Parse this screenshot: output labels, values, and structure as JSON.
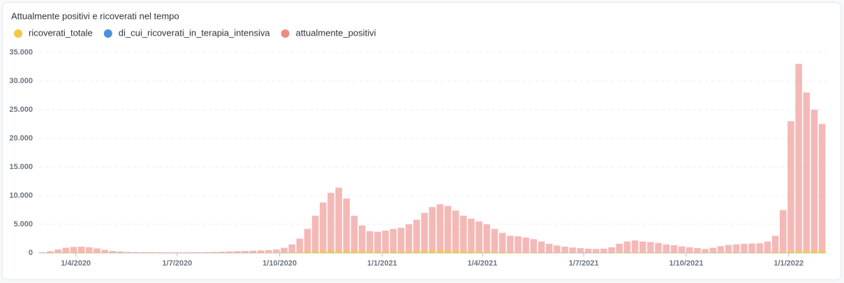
{
  "chart_data": {
    "type": "bar",
    "title": "Attualmente positivi e ricoverati nel tempo",
    "x_start": "2020-03-02",
    "x_step_days": 7,
    "xlim": [
      "2020-02-28",
      "2022-02-04"
    ],
    "xticks": [
      {
        "value": "2020-04-01",
        "label": "1/4/2020"
      },
      {
        "value": "2020-07-01",
        "label": "1/7/2020"
      },
      {
        "value": "2020-10-01",
        "label": "1/10/2020"
      },
      {
        "value": "2021-01-01",
        "label": "1/1/2021"
      },
      {
        "value": "2021-04-01",
        "label": "1/4/2021"
      },
      {
        "value": "2021-07-01",
        "label": "1/7/2021"
      },
      {
        "value": "2021-10-01",
        "label": "1/10/2021"
      },
      {
        "value": "2022-01-01",
        "label": "1/1/2022"
      }
    ],
    "ylim": [
      0,
      35000
    ],
    "yticks": [
      0,
      {
        "value": 5000,
        "label": "5.000"
      },
      {
        "value": 10000,
        "label": "10.000"
      },
      {
        "value": 15000,
        "label": "15.000"
      },
      {
        "value": 20000,
        "label": "20.000"
      },
      {
        "value": 25000,
        "label": "25.000"
      },
      {
        "value": 30000,
        "label": "30.000"
      },
      {
        "value": 35000,
        "label": "35.000"
      }
    ],
    "grid": true,
    "series": [
      {
        "name": "ricoverati_totale",
        "color": "#f5c842",
        "values": [
          10,
          30,
          60,
          90,
          100,
          100,
          90,
          70,
          50,
          35,
          25,
          20,
          15,
          12,
          10,
          10,
          8,
          8,
          8,
          8,
          10,
          12,
          15,
          18,
          20,
          25,
          30,
          35,
          40,
          50,
          60,
          80,
          120,
          180,
          260,
          350,
          400,
          430,
          440,
          420,
          380,
          330,
          300,
          280,
          280,
          290,
          300,
          330,
          370,
          420,
          450,
          460,
          440,
          400,
          350,
          300,
          260,
          220,
          180,
          150,
          120,
          100,
          90,
          80,
          70,
          55,
          45,
          40,
          35,
          30,
          30,
          30,
          35,
          45,
          60,
          75,
          80,
          80,
          75,
          70,
          65,
          55,
          50,
          45,
          40,
          40,
          45,
          50,
          55,
          60,
          65,
          70,
          75,
          90,
          120,
          200,
          300,
          400,
          430,
          420,
          400
        ]
      },
      {
        "name": "di_cui_ricoverati_in_terapia_intensiva",
        "color": "#4a90e2",
        "values": [
          2,
          5,
          10,
          15,
          15,
          14,
          12,
          10,
          7,
          5,
          4,
          3,
          2,
          2,
          2,
          1,
          1,
          1,
          1,
          1,
          1,
          2,
          2,
          3,
          3,
          4,
          5,
          5,
          6,
          7,
          8,
          11,
          16,
          24,
          33,
          42,
          48,
          52,
          53,
          51,
          47,
          42,
          38,
          36,
          36,
          37,
          38,
          41,
          45,
          50,
          53,
          54,
          52,
          48,
          43,
          38,
          33,
          28,
          23,
          19,
          16,
          13,
          11,
          10,
          9,
          7,
          6,
          5,
          4,
          4,
          4,
          4,
          4,
          5,
          7,
          8,
          9,
          9,
          9,
          8,
          8,
          7,
          6,
          5,
          5,
          5,
          5,
          6,
          6,
          7,
          7,
          8,
          8,
          10,
          12,
          18,
          25,
          30,
          32,
          31,
          30
        ]
      },
      {
        "name": "attualmente_positivi",
        "color": "#ed8b87",
        "values": [
          100,
          300,
          600,
          900,
          1050,
          1100,
          1000,
          800,
          550,
          350,
          250,
          180,
          150,
          130,
          120,
          110,
          110,
          100,
          100,
          110,
          120,
          150,
          180,
          220,
          260,
          300,
          350,
          400,
          450,
          500,
          600,
          900,
          1500,
          2500,
          4200,
          6500,
          8800,
          10500,
          11400,
          9500,
          6500,
          4800,
          3800,
          3700,
          3900,
          4200,
          4400,
          5000,
          5800,
          7000,
          8000,
          8500,
          8200,
          7400,
          6500,
          6000,
          5500,
          5000,
          4200,
          3500,
          3000,
          2900,
          2700,
          2400,
          2000,
          1600,
          1300,
          1100,
          950,
          850,
          750,
          700,
          750,
          1000,
          1600,
          2000,
          2200,
          2000,
          1900,
          1750,
          1500,
          1350,
          1150,
          1000,
          850,
          700,
          900,
          1200,
          1400,
          1500,
          1600,
          1650,
          1700,
          2000,
          3000,
          7500,
          23000,
          33000,
          28000,
          25000,
          22500
        ]
      }
    ]
  }
}
